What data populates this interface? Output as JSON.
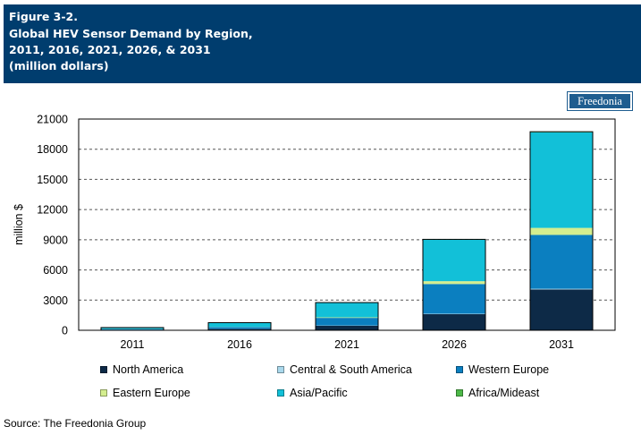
{
  "header": {
    "figure_number": "Figure 3-2.",
    "title_line_1": "Global HEV Sensor Demand by Region,",
    "title_line_2": "2011, 2016, 2021, 2026, & 2031",
    "title_line_3": "(million dollars)"
  },
  "logo": {
    "text": "Freedonia"
  },
  "source": "Source: The Freedonia Group",
  "chart_data": {
    "type": "bar",
    "stacked": true,
    "categories": [
      "2011",
      "2016",
      "2021",
      "2026",
      "2031"
    ],
    "ylabel": "million $",
    "xlabel": "",
    "ylim": [
      0,
      21000
    ],
    "yticks": [
      0,
      3000,
      6000,
      9000,
      12000,
      15000,
      18000,
      21000
    ],
    "grid": "horizontal dashed",
    "legend_position": "bottom",
    "series": [
      {
        "name": "North America",
        "color": "#0d2a47",
        "values": [
          50,
          130,
          450,
          1600,
          4050
        ]
      },
      {
        "name": "Central & South America",
        "color": "#a9d8ec",
        "values": [
          5,
          10,
          25,
          50,
          80
        ]
      },
      {
        "name": "Western Europe",
        "color": "#0b7fc0",
        "values": [
          70,
          170,
          760,
          2950,
          5350
        ]
      },
      {
        "name": "Eastern Europe",
        "color": "#d4ee8f",
        "values": [
          10,
          20,
          55,
          280,
          700
        ]
      },
      {
        "name": "Asia/Pacific",
        "color": "#12c0d8",
        "values": [
          130,
          420,
          1450,
          4130,
          9500
        ]
      },
      {
        "name": "Africa/Mideast",
        "color": "#4db848",
        "values": [
          5,
          10,
          15,
          30,
          60
        ]
      }
    ]
  }
}
